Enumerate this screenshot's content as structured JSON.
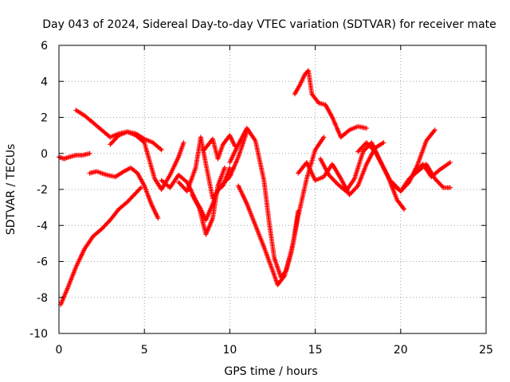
{
  "chart_data": {
    "type": "scatter",
    "title": "Day 043 of 2024, Sidereal Day-to-day VTEC variation (SDTVAR) for receiver mate",
    "xlabel": "GPS time / hours",
    "ylabel": "SDTVAR / TECUs",
    "xlim": [
      0,
      25
    ],
    "ylim": [
      -10,
      6
    ],
    "xticks": [
      0,
      5,
      10,
      15,
      20,
      25
    ],
    "yticks": [
      -10,
      -8,
      -6,
      -4,
      -2,
      0,
      2,
      4,
      6
    ],
    "grid": true,
    "marker": "plus",
    "color": "#ff0000",
    "series": [
      {
        "x": [
          0.0,
          0.3,
          0.6,
          1.0,
          1.4,
          1.8
        ],
        "y": [
          -0.2,
          -0.3,
          -0.2,
          -0.1,
          -0.1,
          0.0
        ]
      },
      {
        "x": [
          0.1,
          0.5,
          1.0,
          1.5,
          2.0,
          2.5,
          3.0,
          3.5,
          4.0,
          4.5,
          4.8
        ],
        "y": [
          -8.4,
          -7.5,
          -6.3,
          -5.3,
          -4.6,
          -4.2,
          -3.7,
          -3.1,
          -2.7,
          -2.2,
          -1.9
        ]
      },
      {
        "x": [
          1.0,
          1.5,
          2.0,
          2.5,
          3.0,
          3.5,
          4.0,
          4.5,
          5.0,
          5.5,
          6.0
        ],
        "y": [
          2.4,
          2.1,
          1.7,
          1.3,
          0.9,
          1.1,
          1.2,
          1.1,
          0.8,
          0.6,
          0.2
        ]
      },
      {
        "x": [
          1.8,
          2.2,
          2.8,
          3.3,
          3.8,
          4.2,
          4.6,
          5.0,
          5.4,
          5.8
        ],
        "y": [
          -1.1,
          -1.0,
          -1.2,
          -1.3,
          -1.0,
          -0.8,
          -1.1,
          -1.8,
          -2.8,
          -3.6
        ]
      },
      {
        "x": [
          3.0,
          3.5,
          4.0,
          4.5,
          5.0,
          5.3,
          5.6,
          6.0,
          6.5,
          7.0,
          7.3
        ],
        "y": [
          0.5,
          1.0,
          1.2,
          1.0,
          0.6,
          -0.4,
          -1.4,
          -2.0,
          -1.2,
          -0.2,
          0.6
        ]
      },
      {
        "x": [
          6.0,
          6.5,
          7.0,
          7.5,
          8.0,
          8.3,
          8.6,
          9.0,
          9.3,
          9.6,
          10.0
        ],
        "y": [
          -1.5,
          -1.9,
          -1.2,
          -1.6,
          -2.6,
          -3.1,
          -3.7,
          -2.8,
          -2.0,
          -1.8,
          -0.8
        ]
      },
      {
        "x": [
          7.0,
          7.5,
          8.0,
          8.3,
          8.6,
          9.0,
          9.5,
          10.0,
          10.5,
          11.0
        ],
        "y": [
          -1.6,
          -2.1,
          -0.8,
          0.9,
          -0.6,
          -2.5,
          -1.8,
          -1.3,
          -0.2,
          1.2
        ]
      },
      {
        "x": [
          7.8,
          8.2,
          8.6,
          9.0,
          9.3,
          9.7
        ],
        "y": [
          -2.3,
          -3.0,
          -4.5,
          -3.6,
          -1.8,
          -0.8
        ]
      },
      {
        "x": [
          8.5,
          9.0,
          9.3,
          9.6,
          10.0,
          10.3
        ],
        "y": [
          0.2,
          0.8,
          -0.3,
          0.5,
          1.0,
          0.4
        ]
      },
      {
        "x": [
          10.0,
          10.5,
          11.0,
          11.5,
          12.0,
          12.3,
          12.6,
          13.0,
          13.3,
          13.7,
          14.0
        ],
        "y": [
          -0.5,
          0.5,
          1.4,
          0.7,
          -1.5,
          -3.8,
          -5.8,
          -6.9,
          -6.5,
          -5.0,
          -3.2
        ]
      },
      {
        "x": [
          10.5,
          11.0,
          11.5,
          12.0,
          12.5,
          12.8,
          13.2,
          13.6,
          14.0,
          14.5,
          15.0,
          15.5
        ],
        "y": [
          -1.8,
          -2.8,
          -4.0,
          -5.2,
          -6.5,
          -7.3,
          -6.8,
          -5.5,
          -3.5,
          -1.4,
          0.2,
          0.9
        ]
      },
      {
        "x": [
          13.8,
          14.1,
          14.4,
          14.6,
          14.8,
          15.2,
          15.6,
          16.0,
          16.5,
          17.0,
          17.5,
          18.0
        ],
        "y": [
          3.3,
          3.8,
          4.4,
          4.6,
          3.3,
          2.8,
          2.7,
          2.0,
          0.9,
          1.3,
          1.5,
          1.4
        ]
      },
      {
        "x": [
          14.0,
          14.5,
          15.0,
          15.5,
          16.0,
          16.5,
          17.0,
          17.5,
          18.0,
          18.5,
          19.0
        ],
        "y": [
          -1.1,
          -0.5,
          -1.5,
          -1.3,
          -0.6,
          -1.4,
          -2.3,
          -1.8,
          -0.6,
          0.3,
          0.6
        ]
      },
      {
        "x": [
          15.3,
          15.8,
          16.3,
          16.8,
          17.3,
          17.8,
          18.3,
          18.8,
          19.3,
          19.8,
          20.2
        ],
        "y": [
          -0.3,
          -1.2,
          -1.7,
          -2.1,
          -1.4,
          0.1,
          0.6,
          -0.4,
          -1.4,
          -2.6,
          -3.1
        ]
      },
      {
        "x": [
          17.5,
          18.0,
          18.5,
          19.0,
          19.5,
          20.0,
          20.5,
          21.0,
          21.5,
          22.0
        ],
        "y": [
          0.1,
          0.6,
          0.1,
          -0.8,
          -1.7,
          -2.1,
          -1.6,
          -0.6,
          0.7,
          1.3
        ]
      },
      {
        "x": [
          19.5,
          20.0,
          20.5,
          21.0,
          21.5,
          22.0,
          22.5,
          22.9
        ],
        "y": [
          -1.6,
          -2.1,
          -1.4,
          -1.0,
          -0.6,
          -1.4,
          -1.9,
          -1.9
        ]
      },
      {
        "x": [
          20.8,
          21.3,
          21.8,
          22.3,
          22.9
        ],
        "y": [
          -1.1,
          -0.6,
          -1.3,
          -0.9,
          -0.5
        ]
      }
    ]
  }
}
